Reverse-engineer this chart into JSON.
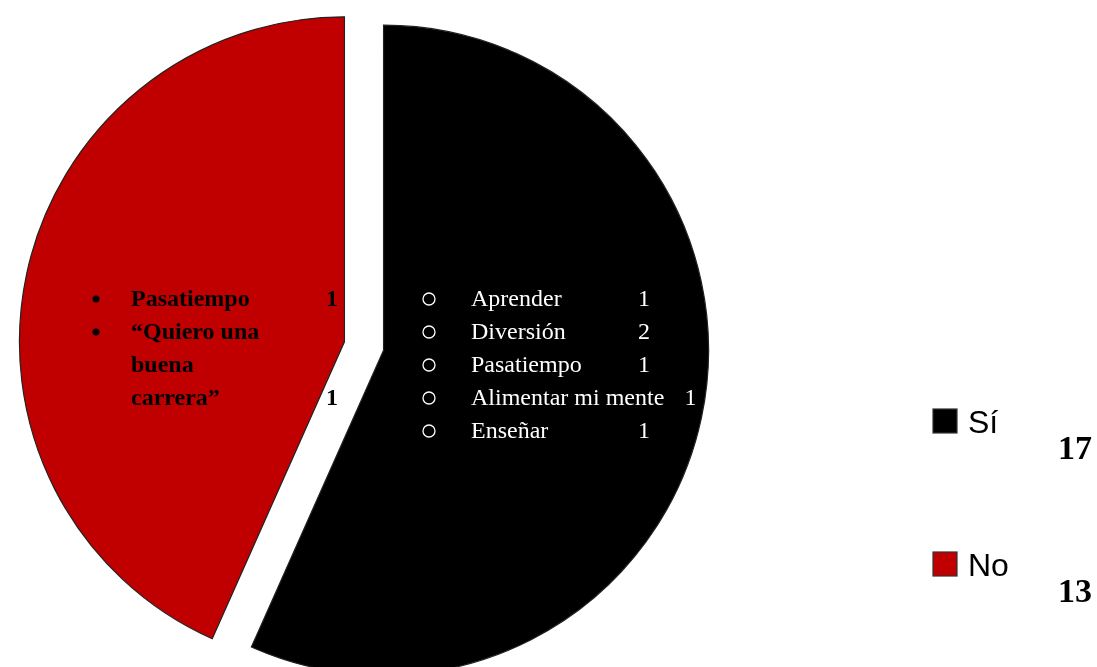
{
  "chart_data": {
    "type": "pie",
    "categories": [
      "Sí",
      "No"
    ],
    "values": [
      17,
      13
    ],
    "colors": [
      "#000000",
      "#c00000"
    ],
    "data_labels": true,
    "legend": "right",
    "annotations": [
      {
        "text": "Pasatiempo 1",
        "x": "No"
      },
      {
        "text": "“Quiero una buena carrera” 1",
        "x": "No"
      },
      {
        "text": "Aprender 1",
        "x": "Sí"
      },
      {
        "text": "Diversión 2",
        "x": "Sí"
      },
      {
        "text": "Pasatiempo 1",
        "x": "Sí"
      },
      {
        "text": "Alimentar mi mente 1",
        "x": "Sí"
      },
      {
        "text": "Enseñar 1",
        "x": "Sí"
      }
    ]
  }
}
